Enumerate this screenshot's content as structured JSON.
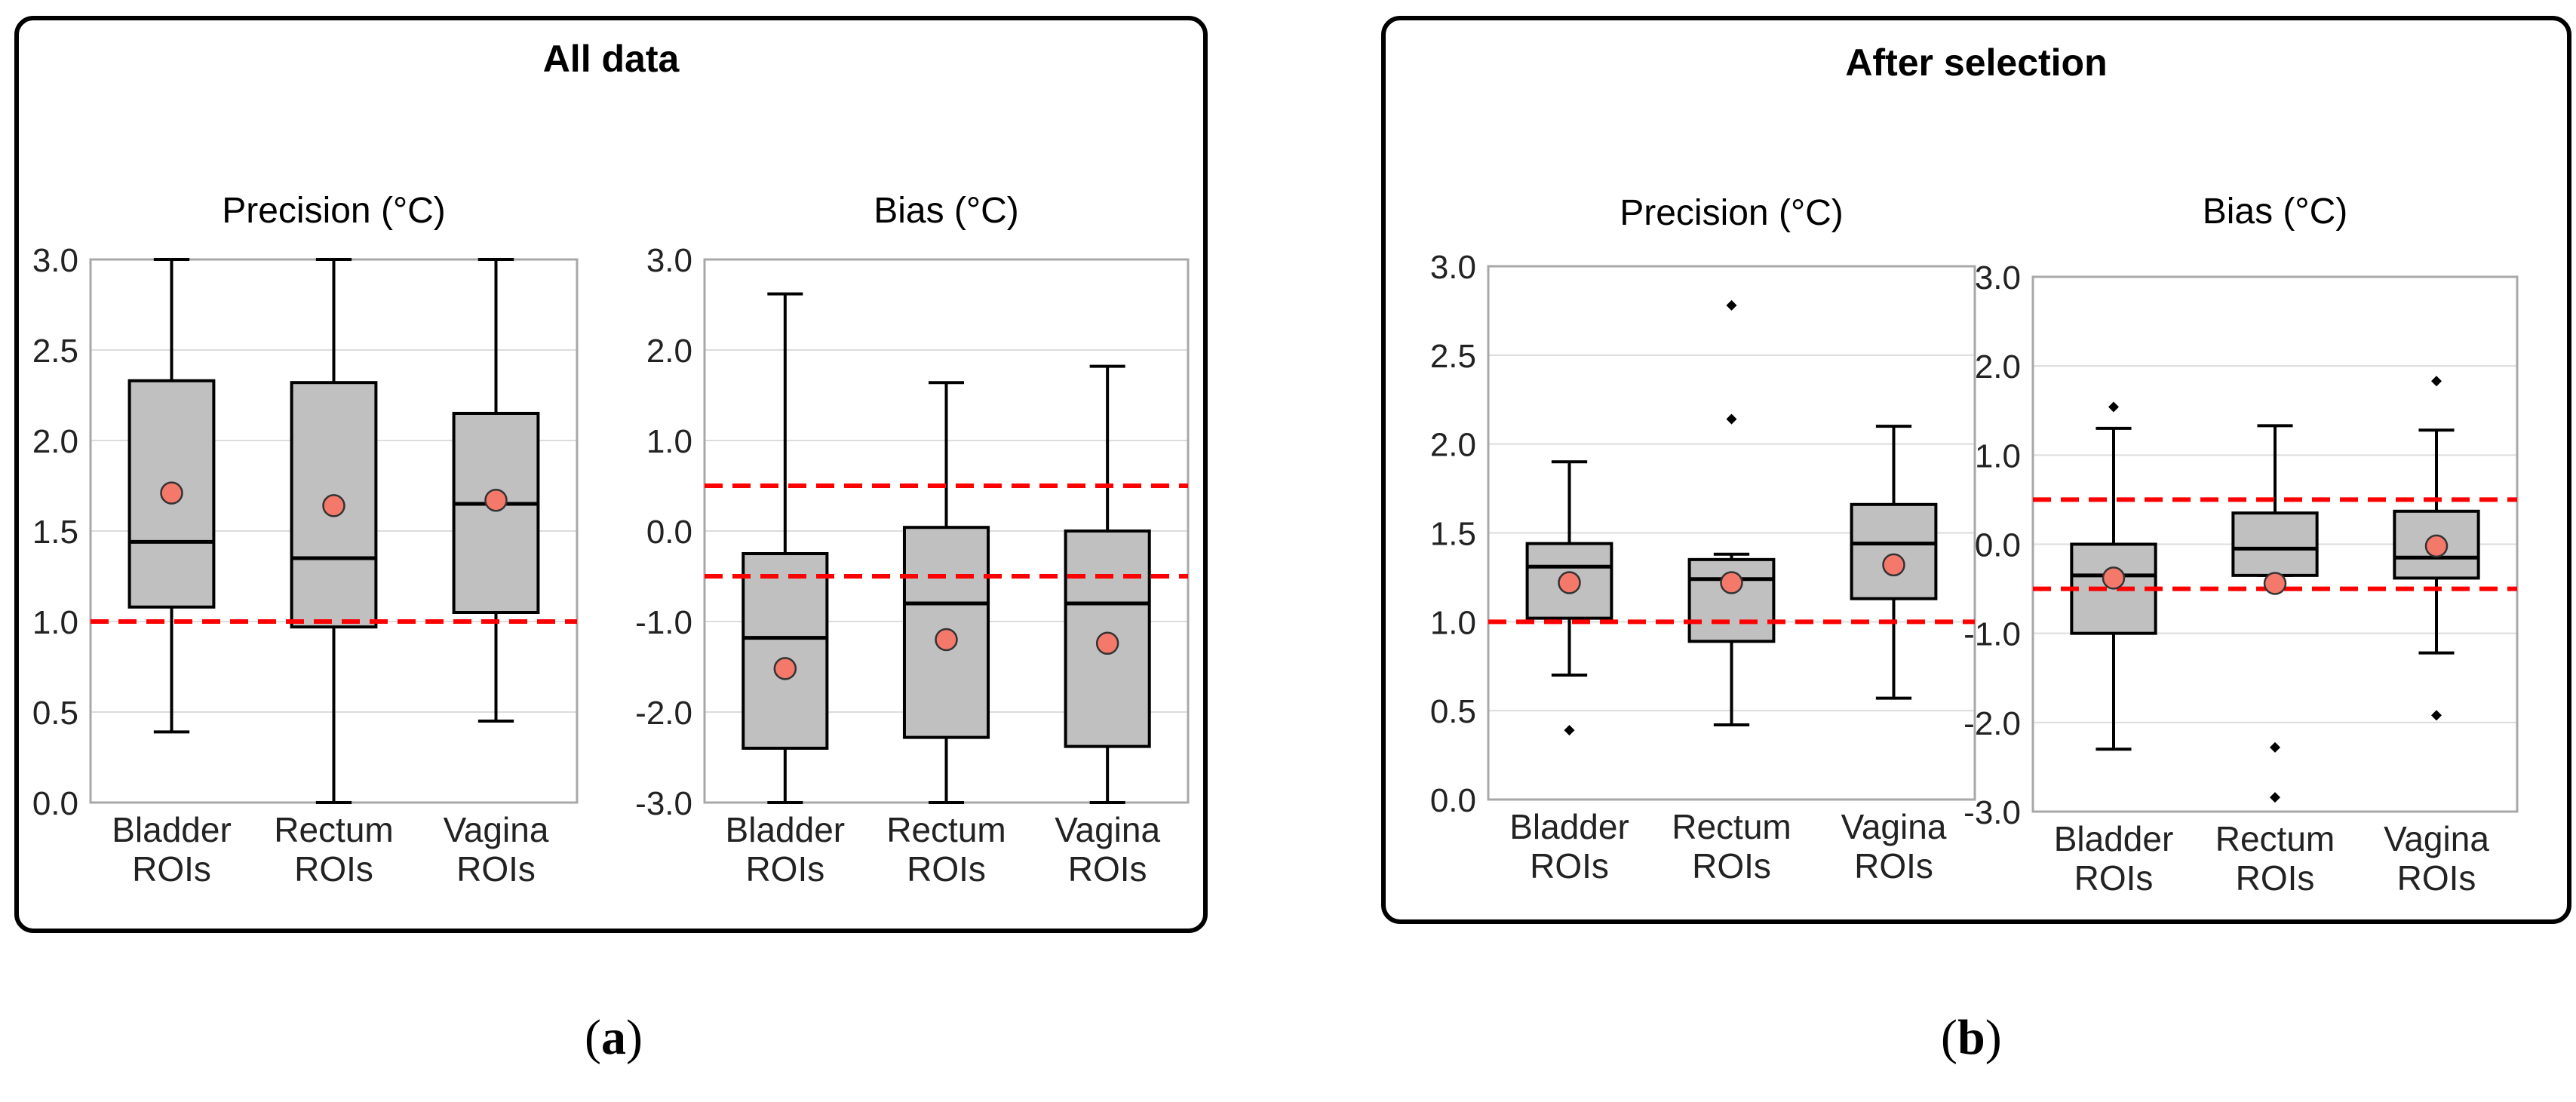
{
  "panels": [
    {
      "title": "All data",
      "caption_open": "(",
      "caption_letter": "a",
      "caption_close": ")",
      "charts": [
        {
          "type": "box",
          "title": "Precision (°C)",
          "categories": [
            [
              "Bladder",
              "ROIs"
            ],
            [
              "Rectum",
              "ROIs"
            ],
            [
              "Vagina",
              "ROIs"
            ]
          ],
          "ylim": [
            0,
            3
          ],
          "yticks": [
            "0.0",
            "0.5",
            "1.0",
            "1.5",
            "2.0",
            "2.5",
            "3.0"
          ],
          "reference_lines": [
            1.0
          ],
          "boxes": [
            {
              "whisker_low": 0.39,
              "q1": 1.08,
              "median": 1.44,
              "q3": 2.33,
              "whisker_high": 3.0,
              "mean": 1.71,
              "outliers": []
            },
            {
              "whisker_low": 0.0,
              "q1": 0.97,
              "median": 1.35,
              "q3": 2.32,
              "whisker_high": 3.0,
              "mean": 1.64,
              "outliers": []
            },
            {
              "whisker_low": 0.45,
              "q1": 1.05,
              "median": 1.65,
              "q3": 2.15,
              "whisker_high": 3.0,
              "mean": 1.67,
              "outliers": []
            }
          ]
        },
        {
          "type": "box",
          "title": "Bias (°C)",
          "categories": [
            [
              "Bladder",
              "ROIs"
            ],
            [
              "Rectum",
              "ROIs"
            ],
            [
              "Vagina",
              "ROIs"
            ]
          ],
          "ylim": [
            -3,
            3
          ],
          "yticks": [
            "-3.0",
            "-2.0",
            "-1.0",
            "0.0",
            "1.0",
            "2.0",
            "3.0"
          ],
          "reference_lines": [
            0.5,
            -0.5
          ],
          "boxes": [
            {
              "whisker_low": -3.0,
              "q1": -2.4,
              "median": -1.18,
              "q3": -0.25,
              "whisker_high": 2.62,
              "mean": -1.52,
              "outliers": []
            },
            {
              "whisker_low": -3.0,
              "q1": -2.28,
              "median": -0.8,
              "q3": 0.04,
              "whisker_high": 1.64,
              "mean": -1.2,
              "outliers": []
            },
            {
              "whisker_low": -3.0,
              "q1": -2.38,
              "median": -0.8,
              "q3": 0.0,
              "whisker_high": 1.82,
              "mean": -1.24,
              "outliers": []
            }
          ]
        }
      ]
    },
    {
      "title": "After selection",
      "caption_open": "(",
      "caption_letter": "b",
      "caption_close": ")",
      "charts": [
        {
          "type": "box",
          "title": "Precision (°C)",
          "categories": [
            [
              "Bladder",
              "ROIs"
            ],
            [
              "Rectum",
              "ROIs"
            ],
            [
              "Vagina",
              "ROIs"
            ]
          ],
          "ylim": [
            0,
            3
          ],
          "yticks": [
            "0.0",
            "0.5",
            "1.0",
            "1.5",
            "2.0",
            "2.5",
            "3.0"
          ],
          "reference_lines": [
            1.0
          ],
          "boxes": [
            {
              "whisker_low": 0.7,
              "q1": 1.02,
              "median": 1.31,
              "q3": 1.44,
              "whisker_high": 1.9,
              "mean": 1.22,
              "outliers": [
                0.39
              ]
            },
            {
              "whisker_low": 0.42,
              "q1": 0.89,
              "median": 1.24,
              "q3": 1.35,
              "whisker_high": 1.38,
              "mean": 1.22,
              "outliers": [
                2.14,
                2.78
              ]
            },
            {
              "whisker_low": 0.57,
              "q1": 1.13,
              "median": 1.44,
              "q3": 1.66,
              "whisker_high": 2.1,
              "mean": 1.32,
              "outliers": []
            }
          ]
        },
        {
          "type": "box",
          "title": "Bias (°C)",
          "categories": [
            [
              "Bladder",
              "ROIs"
            ],
            [
              "Rectum",
              "ROIs"
            ],
            [
              "Vagina",
              "ROIs"
            ]
          ],
          "ylim": [
            -3,
            3
          ],
          "yticks": [
            "-3.0",
            "-2.0",
            "-1.0",
            "0.0",
            "1.0",
            "2.0",
            "3.0"
          ],
          "reference_lines": [
            0.5,
            -0.5
          ],
          "boxes": [
            {
              "whisker_low": -2.3,
              "q1": -1.0,
              "median": -0.35,
              "q3": 0.0,
              "whisker_high": 1.3,
              "mean": -0.38,
              "outliers": [
                1.54
              ]
            },
            {
              "whisker_low": -0.35,
              "q1": -0.35,
              "median": -0.05,
              "q3": 0.35,
              "whisker_high": 1.33,
              "mean": -0.44,
              "outliers": [
                -2.28,
                -2.84
              ]
            },
            {
              "whisker_low": -1.22,
              "q1": -0.38,
              "median": -0.15,
              "q3": 0.37,
              "whisker_high": 1.28,
              "mean": -0.02,
              "outliers": [
                1.83,
                -1.92
              ]
            }
          ]
        }
      ]
    }
  ],
  "colors": {
    "box_fill": "#c0c0c0",
    "mean_marker": "#f4796b",
    "reference_line": "#ff0000",
    "grid": "#dcdcdc",
    "axis_frame": "#a8a8a8",
    "text": "#000000"
  }
}
